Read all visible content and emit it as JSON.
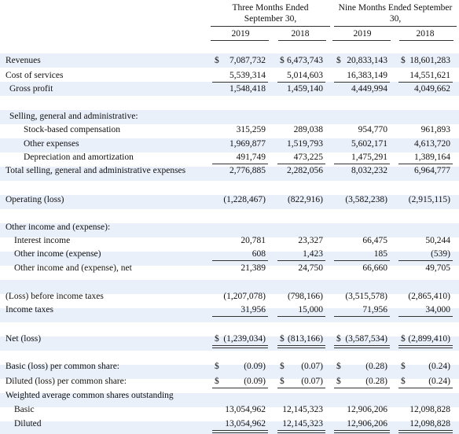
{
  "header": {
    "groups": [
      {
        "lines": [
          "Three Months Ended",
          "September 30,"
        ]
      },
      {
        "lines": [
          "Nine Months Ended September",
          "30,"
        ]
      }
    ],
    "years": [
      "2019",
      "2018",
      "2019",
      "2018"
    ]
  },
  "table": {
    "rows": [
      {
        "label": "Revenues",
        "cells": [
          {
            "sign": "$",
            "value": "7,087,732"
          },
          {
            "sign": "$",
            "value": "6,473,743"
          },
          {
            "sign": "$",
            "value": "20,833,143"
          },
          {
            "sign": "$",
            "value": "18,601,283"
          }
        ]
      },
      {
        "label": "Cost of services",
        "cells": [
          {
            "value": "5,539,314"
          },
          {
            "value": "5,014,603"
          },
          {
            "value": "16,383,149"
          },
          {
            "value": "14,551,621"
          }
        ]
      },
      {
        "label": "Gross profit",
        "cells": [
          {
            "value": "1,548,418"
          },
          {
            "value": "1,459,140"
          },
          {
            "value": "4,449,994"
          },
          {
            "value": "4,049,662"
          }
        ]
      },
      {
        "label": "Selling, general and administrative:",
        "cells": []
      },
      {
        "label": "Stock-based compensation",
        "cells": [
          {
            "value": "315,259"
          },
          {
            "value": "289,038"
          },
          {
            "value": "954,770"
          },
          {
            "value": "961,893"
          }
        ]
      },
      {
        "label": "Other expenses",
        "cells": [
          {
            "value": "1,969,877"
          },
          {
            "value": "1,519,793"
          },
          {
            "value": "5,602,171"
          },
          {
            "value": "4,613,720"
          }
        ]
      },
      {
        "label": "Depreciation and amortization",
        "cells": [
          {
            "value": "491,749"
          },
          {
            "value": "473,225"
          },
          {
            "value": "1,475,291"
          },
          {
            "value": "1,389,164"
          }
        ]
      },
      {
        "label": "Total selling, general and administrative expenses",
        "cells": [
          {
            "value": "2,776,885"
          },
          {
            "value": "2,282,056"
          },
          {
            "value": "8,032,232"
          },
          {
            "value": "6,964,777"
          }
        ]
      },
      {
        "label": "Operating (loss)",
        "cells": [
          {
            "value": "(1,228,467)"
          },
          {
            "value": "(822,916)"
          },
          {
            "value": "(3,582,238)"
          },
          {
            "value": "(2,915,115)"
          }
        ]
      },
      {
        "label": "Other income and (expense):",
        "cells": []
      },
      {
        "label": "Interest income",
        "cells": [
          {
            "value": "20,781"
          },
          {
            "value": "23,327"
          },
          {
            "value": "66,475"
          },
          {
            "value": "50,244"
          }
        ]
      },
      {
        "label": "Other income (expense)",
        "cells": [
          {
            "value": "608"
          },
          {
            "value": "1,423"
          },
          {
            "value": "185"
          },
          {
            "value": "(539)"
          }
        ]
      },
      {
        "label": "Other income and (expense), net",
        "cells": [
          {
            "value": "21,389"
          },
          {
            "value": "24,750"
          },
          {
            "value": "66,660"
          },
          {
            "value": "49,705"
          }
        ]
      },
      {
        "label": "(Loss) before income taxes",
        "cells": [
          {
            "value": "(1,207,078)"
          },
          {
            "value": "(798,166)"
          },
          {
            "value": "(3,515,578)"
          },
          {
            "value": "(2,865,410)"
          }
        ]
      },
      {
        "label": "Income taxes",
        "cells": [
          {
            "value": "31,956"
          },
          {
            "value": "15,000"
          },
          {
            "value": "71,956"
          },
          {
            "value": "34,000"
          }
        ]
      },
      {
        "label": "Net (loss)",
        "cells": [
          {
            "sign": "$",
            "value": "(1,239,034)"
          },
          {
            "sign": "$",
            "value": "(813,166)"
          },
          {
            "sign": "$",
            "value": "(3,587,534)"
          },
          {
            "sign": "$",
            "value": "(2,899,410)"
          }
        ]
      },
      {
        "label": "Basic (loss) per common share:",
        "cells": [
          {
            "sign": "$",
            "value": "(0.09)"
          },
          {
            "sign": "$",
            "value": "(0.07)"
          },
          {
            "sign": "$",
            "value": "(0.28)"
          },
          {
            "sign": "$",
            "value": "(0.24)"
          }
        ]
      },
      {
        "label": "Diluted (loss) per common share:",
        "cells": [
          {
            "sign": "$",
            "value": "(0.09)"
          },
          {
            "sign": "$",
            "value": "(0.07)"
          },
          {
            "sign": "$",
            "value": "(0.28)"
          },
          {
            "sign": "$",
            "value": "(0.24)"
          }
        ]
      },
      {
        "label": "Weighted average common shares outstanding",
        "cells": []
      },
      {
        "label": "Basic",
        "cells": [
          {
            "value": "13,054,962"
          },
          {
            "value": "12,145,323"
          },
          {
            "value": "12,906,206"
          },
          {
            "value": "12,098,828"
          }
        ]
      },
      {
        "label": "Diluted",
        "cells": [
          {
            "value": "13,054,962"
          },
          {
            "value": "12,145,323"
          },
          {
            "value": "12,906,206"
          },
          {
            "value": "12,098,828"
          }
        ]
      }
    ]
  }
}
